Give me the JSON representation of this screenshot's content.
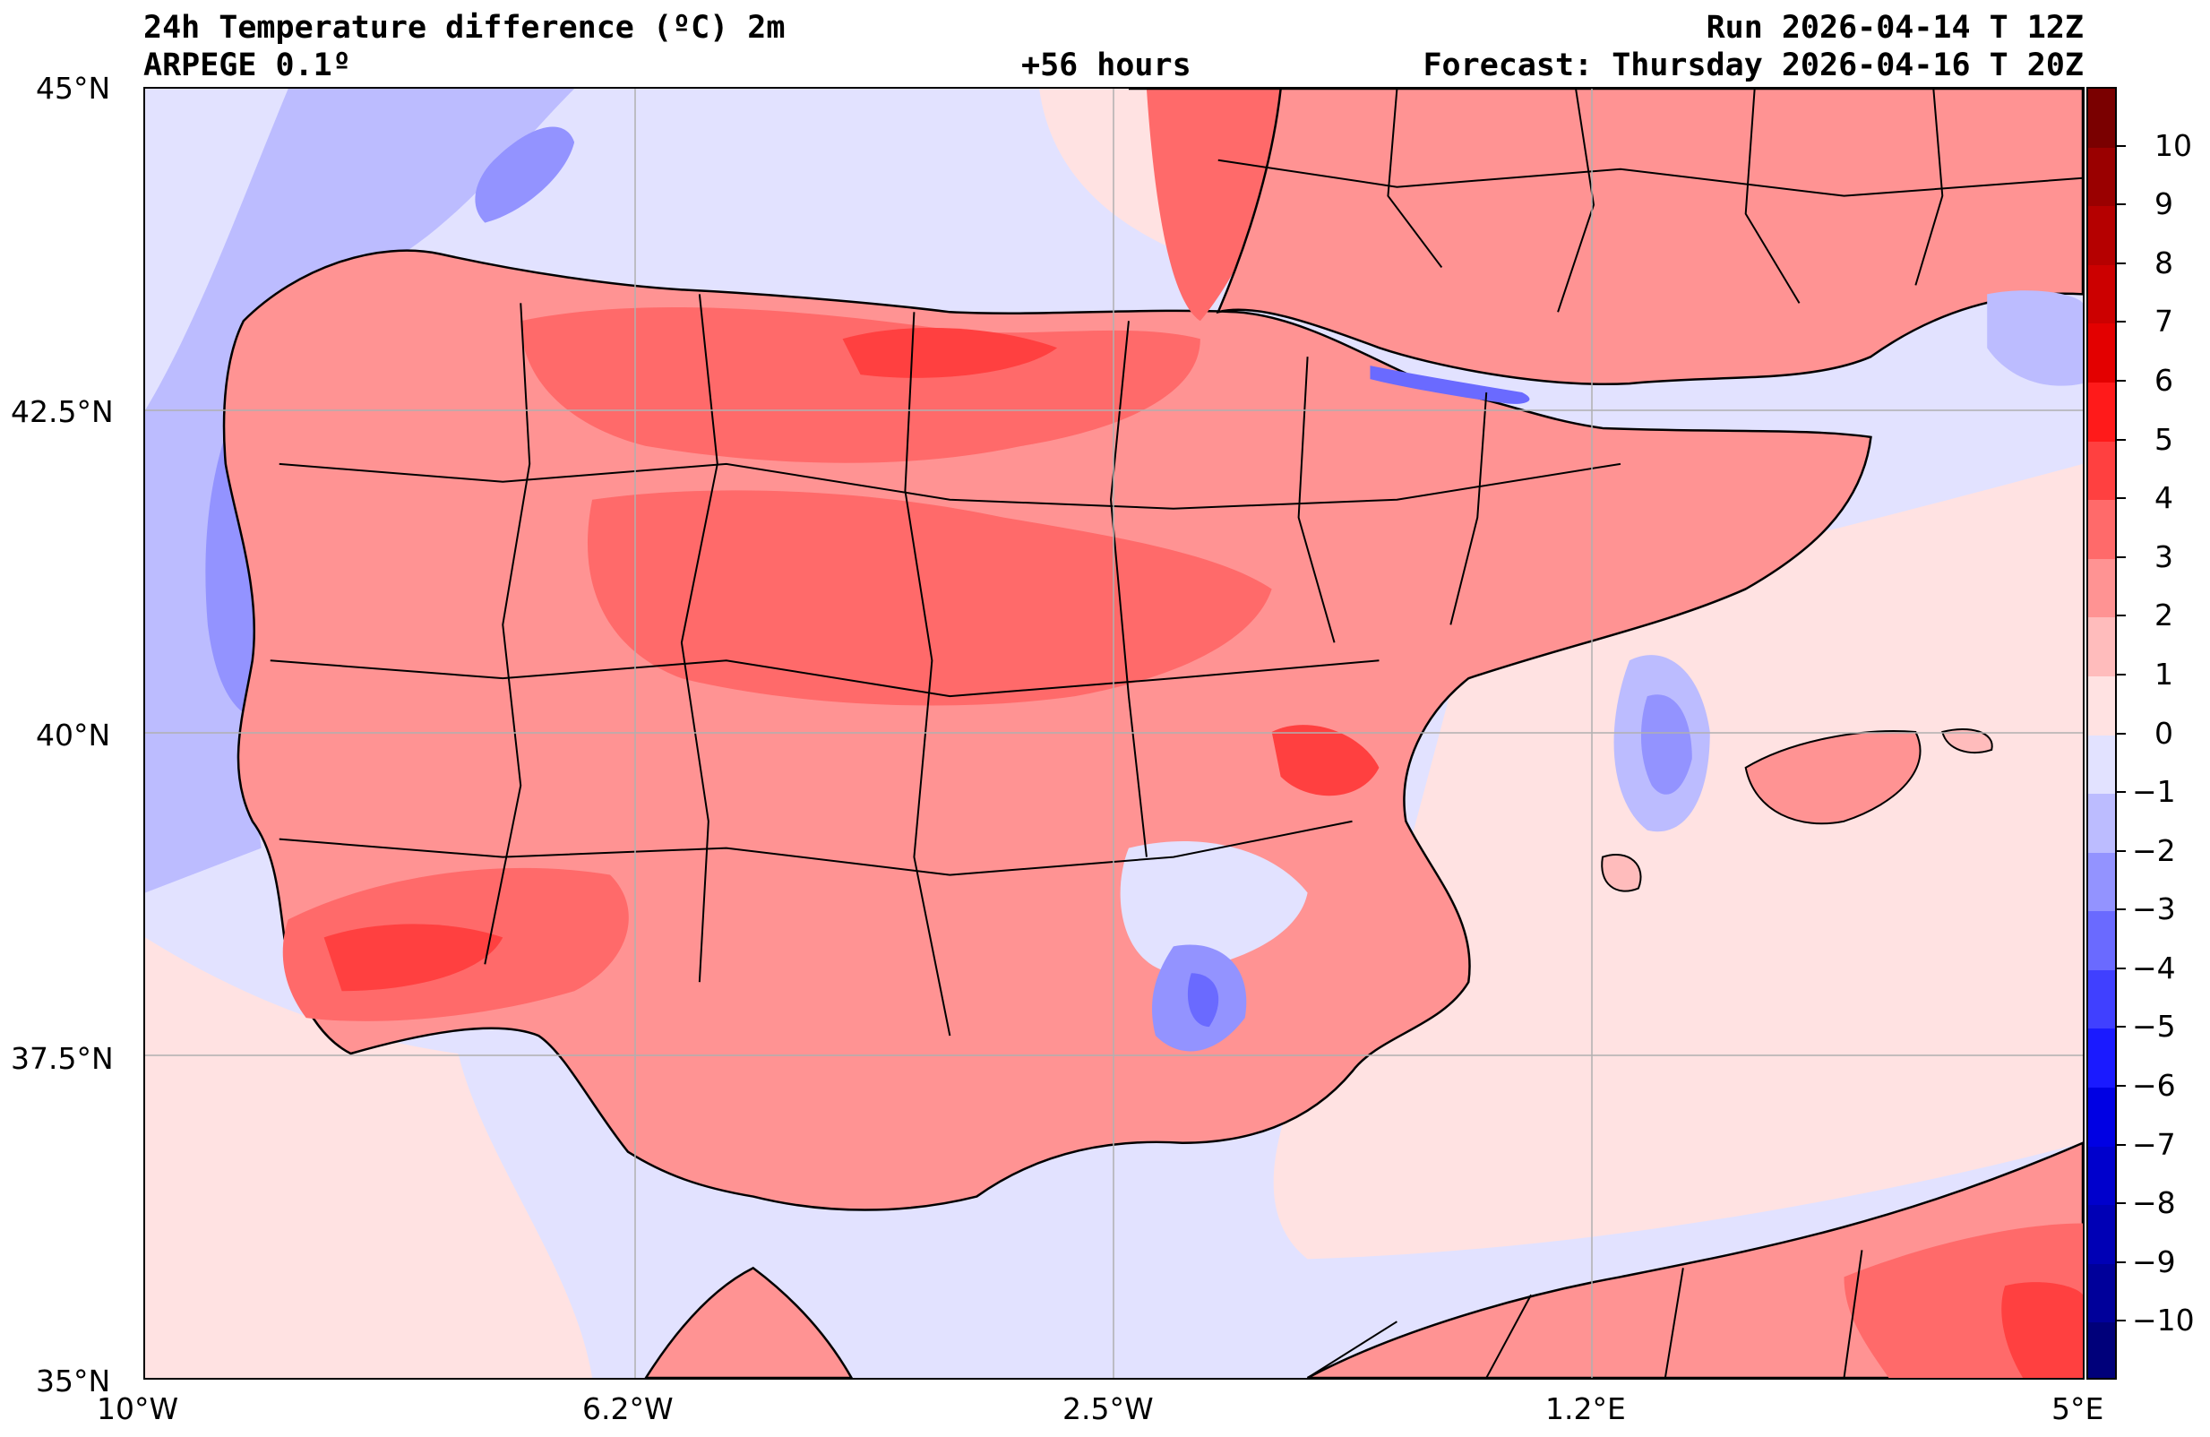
{
  "header": {
    "title": "24h Temperature difference (ºC) 2m",
    "model": "ARPEGE 0.1º",
    "lead_time": "+56 hours",
    "run": "Run 2026-04-14 T 12Z",
    "forecast": "Forecast: Thursday 2026-04-16 T 20Z"
  },
  "axes": {
    "lat_labels": [
      "45°N",
      "42.5°N",
      "40°N",
      "37.5°N",
      "35°N"
    ],
    "lon_labels": [
      "10°W",
      "6.2°W",
      "2.5°W",
      "1.2°E",
      "5°E"
    ]
  },
  "colorbar": {
    "labels": [
      "10",
      "9",
      "8",
      "7",
      "6",
      "5",
      "4",
      "3",
      "2",
      "1",
      "0",
      "−1",
      "−2",
      "−3",
      "−4",
      "−5",
      "−6",
      "−7",
      "−8",
      "−9",
      "−10"
    ],
    "colors": [
      "#7a0000",
      "#9a0000",
      "#b50000",
      "#cc0000",
      "#e30000",
      "#ff1a1a",
      "#ff4040",
      "#ff6a6a",
      "#ff9393",
      "#ffbcbc",
      "#ffe2e2",
      "#e2e2ff",
      "#bcbcff",
      "#9393ff",
      "#6a6aff",
      "#4040ff",
      "#1a1aff",
      "#0000e3",
      "#0000cc",
      "#0000b5",
      "#00009a",
      "#00007a"
    ]
  },
  "map": {
    "extent": {
      "lon_min": -10,
      "lon_max": 5,
      "lat_min": 35,
      "lat_max": 45
    },
    "palette": {
      "sea_neutral": "#e2e2ff",
      "warm_light": "#ffe2e2",
      "warm_1": "#ffbcbc",
      "warm_2": "#ff9393",
      "warm_3": "#ff6a6a",
      "warm_4": "#ff4040",
      "cool_1": "#bcbcff",
      "cool_2": "#9393ff",
      "cool_3": "#6a6aff",
      "grid": "#b0b0b0",
      "coast": "#000000"
    }
  }
}
